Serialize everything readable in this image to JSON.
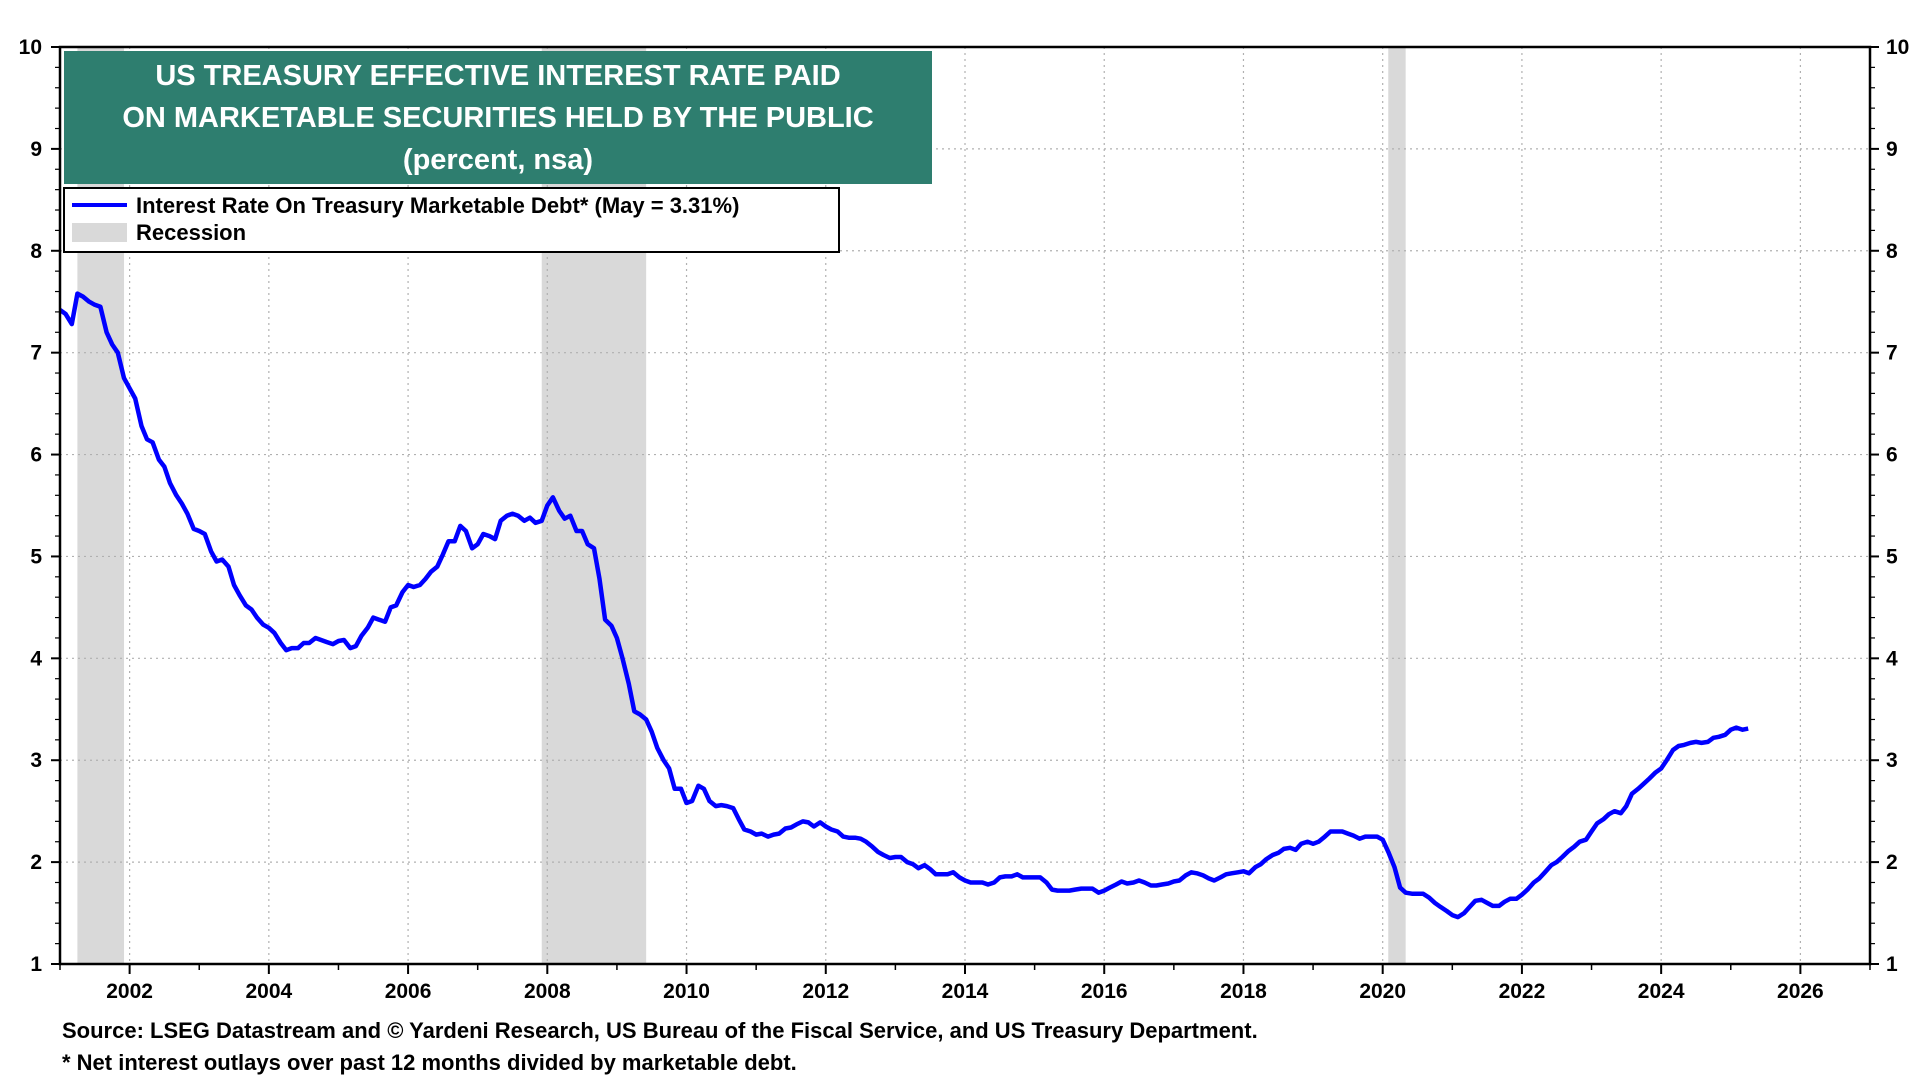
{
  "chart_data": {
    "type": "line",
    "title_lines": [
      "US TREASURY EFFECTIVE INTEREST RATE PAID",
      "ON MARKETABLE SECURITIES HELD BY THE PUBLIC",
      "(percent, nsa)"
    ],
    "ylim": [
      1,
      10
    ],
    "xlim": [
      2001.0,
      2027.0
    ],
    "y_ticks": [
      "1",
      "2",
      "3",
      "4",
      "5",
      "6",
      "7",
      "8",
      "9",
      "10"
    ],
    "x_ticks": [
      "2002",
      "2004",
      "2006",
      "2008",
      "2010",
      "2012",
      "2014",
      "2016",
      "2018",
      "2020",
      "2022",
      "2024",
      "2026"
    ],
    "grid": true,
    "legend_position": "top-left",
    "series": [
      {
        "name": "Interest Rate On Treasury Marketable Debt* (May = 3.31%)",
        "color": "#0000ff",
        "points": [
          [
            2001.0,
            7.42
          ],
          [
            2001.08,
            7.38
          ],
          [
            2001.17,
            7.28
          ],
          [
            2001.25,
            7.58
          ],
          [
            2001.33,
            7.55
          ],
          [
            2001.42,
            7.5
          ],
          [
            2001.5,
            7.47
          ],
          [
            2001.58,
            7.45
          ],
          [
            2001.67,
            7.2
          ],
          [
            2001.75,
            7.08
          ],
          [
            2001.83,
            7.0
          ],
          [
            2001.92,
            6.75
          ],
          [
            2002.0,
            6.65
          ],
          [
            2002.08,
            6.55
          ],
          [
            2002.17,
            6.28
          ],
          [
            2002.25,
            6.15
          ],
          [
            2002.33,
            6.12
          ],
          [
            2002.42,
            5.95
          ],
          [
            2002.5,
            5.88
          ],
          [
            2002.58,
            5.72
          ],
          [
            2002.67,
            5.6
          ],
          [
            2002.75,
            5.52
          ],
          [
            2002.83,
            5.42
          ],
          [
            2002.92,
            5.27
          ],
          [
            2003.0,
            5.25
          ],
          [
            2003.08,
            5.22
          ],
          [
            2003.17,
            5.05
          ],
          [
            2003.25,
            4.95
          ],
          [
            2003.33,
            4.97
          ],
          [
            2003.42,
            4.9
          ],
          [
            2003.5,
            4.72
          ],
          [
            2003.58,
            4.62
          ],
          [
            2003.67,
            4.52
          ],
          [
            2003.75,
            4.48
          ],
          [
            2003.83,
            4.4
          ],
          [
            2003.92,
            4.33
          ],
          [
            2004.0,
            4.3
          ],
          [
            2004.08,
            4.25
          ],
          [
            2004.17,
            4.15
          ],
          [
            2004.25,
            4.08
          ],
          [
            2004.33,
            4.1
          ],
          [
            2004.42,
            4.1
          ],
          [
            2004.5,
            4.15
          ],
          [
            2004.58,
            4.15
          ],
          [
            2004.67,
            4.2
          ],
          [
            2004.75,
            4.18
          ],
          [
            2004.83,
            4.16
          ],
          [
            2004.92,
            4.14
          ],
          [
            2005.0,
            4.17
          ],
          [
            2005.08,
            4.18
          ],
          [
            2005.17,
            4.1
          ],
          [
            2005.25,
            4.12
          ],
          [
            2005.33,
            4.22
          ],
          [
            2005.42,
            4.3
          ],
          [
            2005.5,
            4.4
          ],
          [
            2005.58,
            4.38
          ],
          [
            2005.67,
            4.36
          ],
          [
            2005.75,
            4.5
          ],
          [
            2005.83,
            4.52
          ],
          [
            2005.92,
            4.65
          ],
          [
            2006.0,
            4.72
          ],
          [
            2006.08,
            4.7
          ],
          [
            2006.17,
            4.72
          ],
          [
            2006.25,
            4.78
          ],
          [
            2006.33,
            4.85
          ],
          [
            2006.42,
            4.9
          ],
          [
            2006.5,
            5.02
          ],
          [
            2006.58,
            5.15
          ],
          [
            2006.67,
            5.15
          ],
          [
            2006.75,
            5.3
          ],
          [
            2006.83,
            5.25
          ],
          [
            2006.92,
            5.08
          ],
          [
            2007.0,
            5.12
          ],
          [
            2007.08,
            5.22
          ],
          [
            2007.17,
            5.2
          ],
          [
            2007.25,
            5.17
          ],
          [
            2007.33,
            5.35
          ],
          [
            2007.42,
            5.4
          ],
          [
            2007.5,
            5.42
          ],
          [
            2007.58,
            5.4
          ],
          [
            2007.67,
            5.35
          ],
          [
            2007.75,
            5.38
          ],
          [
            2007.83,
            5.33
          ],
          [
            2007.92,
            5.35
          ],
          [
            2008.0,
            5.5
          ],
          [
            2008.08,
            5.58
          ],
          [
            2008.17,
            5.45
          ],
          [
            2008.25,
            5.37
          ],
          [
            2008.33,
            5.4
          ],
          [
            2008.42,
            5.25
          ],
          [
            2008.5,
            5.25
          ],
          [
            2008.58,
            5.12
          ],
          [
            2008.67,
            5.08
          ],
          [
            2008.75,
            4.78
          ],
          [
            2008.83,
            4.38
          ],
          [
            2008.92,
            4.32
          ],
          [
            2009.0,
            4.2
          ],
          [
            2009.08,
            4.0
          ],
          [
            2009.17,
            3.75
          ],
          [
            2009.25,
            3.48
          ],
          [
            2009.33,
            3.45
          ],
          [
            2009.42,
            3.4
          ],
          [
            2009.5,
            3.28
          ],
          [
            2009.58,
            3.12
          ],
          [
            2009.67,
            3.0
          ],
          [
            2009.75,
            2.92
          ],
          [
            2009.83,
            2.72
          ],
          [
            2009.92,
            2.72
          ],
          [
            2010.0,
            2.58
          ],
          [
            2010.08,
            2.6
          ],
          [
            2010.17,
            2.75
          ],
          [
            2010.25,
            2.72
          ],
          [
            2010.33,
            2.6
          ],
          [
            2010.42,
            2.55
          ],
          [
            2010.5,
            2.56
          ],
          [
            2010.58,
            2.55
          ],
          [
            2010.67,
            2.53
          ],
          [
            2010.75,
            2.42
          ],
          [
            2010.83,
            2.32
          ],
          [
            2010.92,
            2.3
          ],
          [
            2011.0,
            2.27
          ],
          [
            2011.08,
            2.28
          ],
          [
            2011.17,
            2.25
          ],
          [
            2011.25,
            2.27
          ],
          [
            2011.33,
            2.28
          ],
          [
            2011.42,
            2.33
          ],
          [
            2011.5,
            2.34
          ],
          [
            2011.58,
            2.37
          ],
          [
            2011.67,
            2.4
          ],
          [
            2011.75,
            2.39
          ],
          [
            2011.83,
            2.35
          ],
          [
            2011.92,
            2.39
          ],
          [
            2012.0,
            2.35
          ],
          [
            2012.08,
            2.32
          ],
          [
            2012.17,
            2.3
          ],
          [
            2012.25,
            2.25
          ],
          [
            2012.33,
            2.24
          ],
          [
            2012.42,
            2.24
          ],
          [
            2012.5,
            2.23
          ],
          [
            2012.58,
            2.2
          ],
          [
            2012.67,
            2.15
          ],
          [
            2012.75,
            2.1
          ],
          [
            2012.83,
            2.07
          ],
          [
            2012.92,
            2.04
          ],
          [
            2013.0,
            2.05
          ],
          [
            2013.08,
            2.05
          ],
          [
            2013.17,
            2.0
          ],
          [
            2013.25,
            1.98
          ],
          [
            2013.33,
            1.94
          ],
          [
            2013.42,
            1.97
          ],
          [
            2013.5,
            1.93
          ],
          [
            2013.58,
            1.88
          ],
          [
            2013.67,
            1.88
          ],
          [
            2013.75,
            1.88
          ],
          [
            2013.83,
            1.9
          ],
          [
            2013.92,
            1.85
          ],
          [
            2014.0,
            1.82
          ],
          [
            2014.08,
            1.8
          ],
          [
            2014.17,
            1.8
          ],
          [
            2014.25,
            1.8
          ],
          [
            2014.33,
            1.78
          ],
          [
            2014.42,
            1.8
          ],
          [
            2014.5,
            1.85
          ],
          [
            2014.58,
            1.86
          ],
          [
            2014.67,
            1.86
          ],
          [
            2014.75,
            1.88
          ],
          [
            2014.83,
            1.85
          ],
          [
            2014.92,
            1.85
          ],
          [
            2015.0,
            1.85
          ],
          [
            2015.08,
            1.85
          ],
          [
            2015.17,
            1.8
          ],
          [
            2015.25,
            1.73
          ],
          [
            2015.33,
            1.72
          ],
          [
            2015.42,
            1.72
          ],
          [
            2015.5,
            1.72
          ],
          [
            2015.58,
            1.73
          ],
          [
            2015.67,
            1.74
          ],
          [
            2015.75,
            1.74
          ],
          [
            2015.83,
            1.74
          ],
          [
            2015.92,
            1.7
          ],
          [
            2016.0,
            1.72
          ],
          [
            2016.08,
            1.75
          ],
          [
            2016.17,
            1.78
          ],
          [
            2016.25,
            1.81
          ],
          [
            2016.33,
            1.79
          ],
          [
            2016.42,
            1.8
          ],
          [
            2016.5,
            1.82
          ],
          [
            2016.58,
            1.8
          ],
          [
            2016.67,
            1.77
          ],
          [
            2016.75,
            1.77
          ],
          [
            2016.83,
            1.78
          ],
          [
            2016.92,
            1.79
          ],
          [
            2017.0,
            1.81
          ],
          [
            2017.08,
            1.82
          ],
          [
            2017.17,
            1.87
          ],
          [
            2017.25,
            1.9
          ],
          [
            2017.33,
            1.89
          ],
          [
            2017.42,
            1.87
          ],
          [
            2017.5,
            1.84
          ],
          [
            2017.58,
            1.82
          ],
          [
            2017.67,
            1.85
          ],
          [
            2017.75,
            1.88
          ],
          [
            2017.83,
            1.89
          ],
          [
            2017.92,
            1.9
          ],
          [
            2018.0,
            1.91
          ],
          [
            2018.08,
            1.89
          ],
          [
            2018.17,
            1.95
          ],
          [
            2018.25,
            1.98
          ],
          [
            2018.33,
            2.03
          ],
          [
            2018.42,
            2.07
          ],
          [
            2018.5,
            2.09
          ],
          [
            2018.58,
            2.13
          ],
          [
            2018.67,
            2.14
          ],
          [
            2018.75,
            2.12
          ],
          [
            2018.83,
            2.18
          ],
          [
            2018.92,
            2.2
          ],
          [
            2019.0,
            2.18
          ],
          [
            2019.08,
            2.2
          ],
          [
            2019.17,
            2.25
          ],
          [
            2019.25,
            2.3
          ],
          [
            2019.33,
            2.3
          ],
          [
            2019.42,
            2.3
          ],
          [
            2019.5,
            2.28
          ],
          [
            2019.58,
            2.26
          ],
          [
            2019.67,
            2.23
          ],
          [
            2019.75,
            2.25
          ],
          [
            2019.83,
            2.25
          ],
          [
            2019.92,
            2.25
          ],
          [
            2020.0,
            2.22
          ],
          [
            2020.08,
            2.1
          ],
          [
            2020.17,
            1.95
          ],
          [
            2020.25,
            1.75
          ],
          [
            2020.33,
            1.7
          ],
          [
            2020.42,
            1.69
          ],
          [
            2020.5,
            1.69
          ],
          [
            2020.58,
            1.69
          ],
          [
            2020.67,
            1.65
          ],
          [
            2020.75,
            1.6
          ],
          [
            2020.83,
            1.56
          ],
          [
            2020.92,
            1.52
          ],
          [
            2021.0,
            1.48
          ],
          [
            2021.08,
            1.46
          ],
          [
            2021.17,
            1.5
          ],
          [
            2021.25,
            1.56
          ],
          [
            2021.33,
            1.62
          ],
          [
            2021.42,
            1.63
          ],
          [
            2021.5,
            1.6
          ],
          [
            2021.58,
            1.57
          ],
          [
            2021.67,
            1.57
          ],
          [
            2021.75,
            1.61
          ],
          [
            2021.83,
            1.64
          ],
          [
            2021.92,
            1.64
          ],
          [
            2022.0,
            1.68
          ],
          [
            2022.08,
            1.73
          ],
          [
            2022.17,
            1.8
          ],
          [
            2022.25,
            1.84
          ],
          [
            2022.33,
            1.9
          ],
          [
            2022.42,
            1.97
          ],
          [
            2022.5,
            2.0
          ],
          [
            2022.58,
            2.05
          ],
          [
            2022.67,
            2.11
          ],
          [
            2022.75,
            2.15
          ],
          [
            2022.83,
            2.2
          ],
          [
            2022.92,
            2.22
          ],
          [
            2023.0,
            2.3
          ],
          [
            2023.08,
            2.38
          ],
          [
            2023.17,
            2.42
          ],
          [
            2023.25,
            2.47
          ],
          [
            2023.33,
            2.5
          ],
          [
            2023.42,
            2.48
          ],
          [
            2023.5,
            2.55
          ],
          [
            2023.58,
            2.67
          ],
          [
            2023.67,
            2.72
          ],
          [
            2023.75,
            2.77
          ],
          [
            2023.83,
            2.82
          ],
          [
            2023.92,
            2.88
          ],
          [
            2024.0,
            2.92
          ],
          [
            2024.08,
            3.0
          ],
          [
            2024.17,
            3.1
          ],
          [
            2024.25,
            3.14
          ],
          [
            2024.33,
            3.15
          ],
          [
            2024.42,
            3.17
          ],
          [
            2024.5,
            3.18
          ],
          [
            2024.58,
            3.17
          ],
          [
            2024.67,
            3.18
          ],
          [
            2024.75,
            3.22
          ],
          [
            2024.83,
            3.23
          ],
          [
            2024.92,
            3.25
          ],
          [
            2025.0,
            3.3
          ],
          [
            2025.08,
            3.32
          ],
          [
            2025.17,
            3.3
          ],
          [
            2025.25,
            3.31
          ]
        ]
      }
    ],
    "recessions": [
      {
        "start": 2001.25,
        "end": 2001.92
      },
      {
        "start": 2007.92,
        "end": 2009.42
      },
      {
        "start": 2020.08,
        "end": 2020.33
      }
    ],
    "legend": {
      "line_label": "Interest Rate On Treasury Marketable Debt* (May = 3.31%)",
      "recession_label": "Recession"
    },
    "colors": {
      "title_bg": "#2e7e6f",
      "line": "#0000ff",
      "recession": "#d9d9d9",
      "grid": "#b0b0b0"
    }
  },
  "footer": {
    "source": "Source: LSEG Datastream and © Yardeni Research, US Bureau of the Fiscal Service, and US Treasury Department.",
    "note": "* Net interest outlays over past 12 months divided by marketable debt."
  }
}
